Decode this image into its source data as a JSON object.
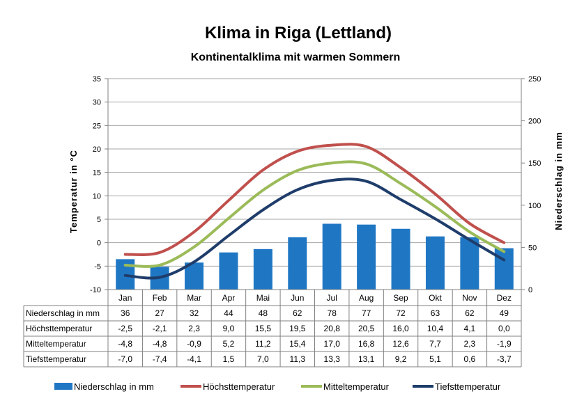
{
  "chart_data": {
    "type": "bar+line",
    "title": "Klima in Riga (Lettland)",
    "subtitle": "Kontinentalklima mit warmen Sommern",
    "categories": [
      "Jan",
      "Feb",
      "Mar",
      "Apr",
      "Mai",
      "Jun",
      "Jul",
      "Aug",
      "Sep",
      "Okt",
      "Nov",
      "Dez"
    ],
    "ylabel_left": "Temperatur  in  °C",
    "ylabel_right": "Niederschlag  in  mm",
    "ylim_left": [
      -10,
      35
    ],
    "yticks_left": [
      "35",
      "30",
      "25",
      "20",
      "15",
      "10",
      "5",
      "0",
      "-5",
      "-10"
    ],
    "ylim_right": [
      0,
      250
    ],
    "yticks_right": [
      "250",
      "200",
      "150",
      "100",
      "50",
      "0"
    ],
    "series": [
      {
        "name": "Niederschlag in mm",
        "type": "bar",
        "axis": "right",
        "color": "#1f77c4",
        "values": [
          36,
          27,
          32,
          44,
          48,
          62,
          78,
          77,
          72,
          63,
          62,
          49
        ],
        "labels": [
          "36",
          "27",
          "32",
          "44",
          "48",
          "62",
          "78",
          "77",
          "72",
          "63",
          "62",
          "49"
        ]
      },
      {
        "name": "Höchsttemperatur",
        "type": "line",
        "axis": "left",
        "color": "#c0504d",
        "values": [
          -2.5,
          -2.1,
          2.3,
          9.0,
          15.5,
          19.5,
          20.8,
          20.5,
          16.0,
          10.4,
          4.1,
          0.0
        ],
        "labels": [
          "-2,5",
          "-2,1",
          "2,3",
          "9,0",
          "15,5",
          "19,5",
          "20,8",
          "20,5",
          "16,0",
          "10,4",
          "4,1",
          "0,0"
        ]
      },
      {
        "name": "Mitteltemperatur",
        "type": "line",
        "axis": "left",
        "color": "#9bbb59",
        "values": [
          -4.8,
          -4.8,
          -0.9,
          5.2,
          11.2,
          15.4,
          17.0,
          16.8,
          12.6,
          7.7,
          2.3,
          -1.9
        ],
        "labels": [
          "-4,8",
          "-4,8",
          "-0,9",
          "5,2",
          "11,2",
          "15,4",
          "17,0",
          "16,8",
          "12,6",
          "7,7",
          "2,3",
          "-1,9"
        ]
      },
      {
        "name": "Tiefsttemperatur",
        "type": "line",
        "axis": "left",
        "color": "#1f3d6b",
        "values": [
          -7.0,
          -7.4,
          -4.1,
          1.5,
          7.0,
          11.3,
          13.3,
          13.1,
          9.2,
          5.1,
          0.6,
          -3.7
        ],
        "labels": [
          "-7,0",
          "-7,4",
          "-4,1",
          "1,5",
          "7,0",
          "11,3",
          "13,3",
          "13,1",
          "9,2",
          "5,1",
          "0,6",
          "-3,7"
        ]
      }
    ],
    "legend_position": "bottom",
    "grid": "horizontal",
    "data_table": true
  }
}
